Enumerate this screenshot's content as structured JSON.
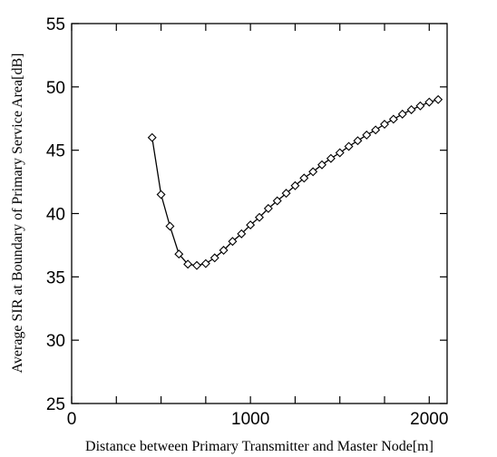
{
  "chart_data": {
    "type": "line",
    "title": "",
    "xlabel": "Distance between Primary Transmitter and Master Node[m]",
    "ylabel": "Average SIR at Boundary of Primary Service Area[dB]",
    "xlim": [
      0,
      2100
    ],
    "ylim": [
      25,
      55
    ],
    "x_ticks": [
      0,
      1000,
      2000
    ],
    "y_ticks": [
      25,
      30,
      35,
      40,
      45,
      50,
      55
    ],
    "x_minor_ticks": [
      250,
      500,
      750,
      1250,
      1500,
      1750
    ],
    "grid": false,
    "marker": "diamond",
    "series": [
      {
        "x": [
          450,
          500,
          550,
          600,
          650,
          700,
          750,
          800,
          850,
          900,
          950,
          1000,
          1050,
          1100,
          1150,
          1200,
          1250,
          1300,
          1350,
          1400,
          1450,
          1500,
          1550,
          1600,
          1650,
          1700,
          1750,
          1800,
          1850,
          1900,
          1950,
          2000,
          2050
        ],
        "y": [
          46.0,
          41.5,
          39.0,
          36.8,
          36.0,
          35.9,
          36.05,
          36.5,
          37.1,
          37.8,
          38.4,
          39.1,
          39.7,
          40.4,
          41.0,
          41.6,
          42.2,
          42.8,
          43.3,
          43.85,
          44.35,
          44.8,
          45.3,
          45.75,
          46.2,
          46.6,
          47.05,
          47.45,
          47.85,
          48.2,
          48.5,
          48.8,
          49.0
        ]
      }
    ]
  }
}
